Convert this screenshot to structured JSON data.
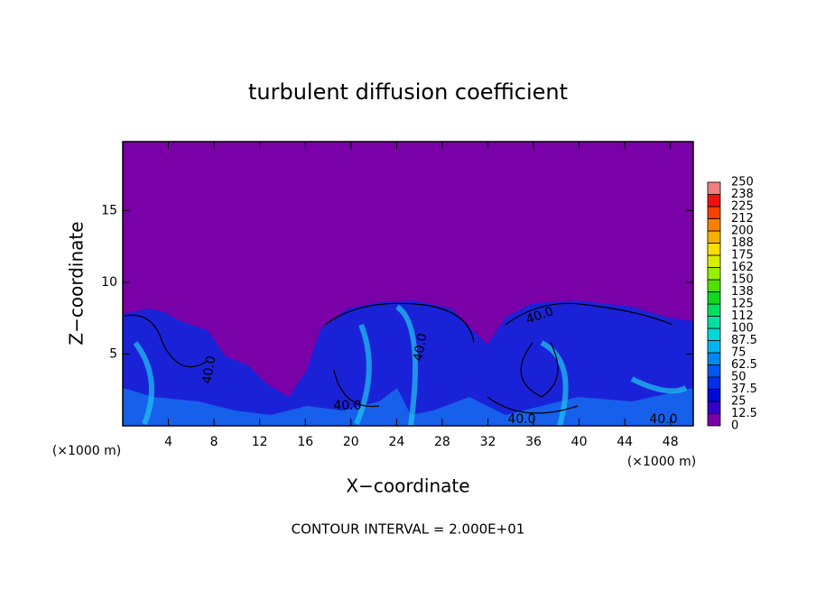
{
  "chart_data": {
    "type": "contour",
    "title": "turbulent diffusion coefficient",
    "x_label": "X−coordinate",
    "y_label": "Z−coordinate",
    "x_unit": "(×1000 m)",
    "footer": "CONTOUR INTERVAL = 2.000E+01",
    "xlim": [
      0,
      50
    ],
    "ylim": [
      0,
      19.8
    ],
    "xticks": [
      4,
      8,
      12,
      16,
      20,
      24,
      28,
      32,
      36,
      40,
      44,
      48
    ],
    "yticks": [
      5,
      10,
      15
    ],
    "contour_labels": [
      "40.0",
      "40.0",
      "40.0",
      "40.0",
      "40.0",
      "40.0"
    ],
    "colorbar": {
      "lim": [
        0,
        250
      ],
      "ticks": [
        0,
        12.5,
        25,
        37.5,
        50,
        62.5,
        75,
        87.5,
        100,
        {
          "value": 112.5,
          "label": "112"
        },
        125,
        {
          "value": 137.5,
          "label": "138"
        },
        150,
        {
          "value": 162.5,
          "label": "162"
        },
        175,
        {
          "value": 187.5,
          "label": "188"
        },
        200,
        {
          "value": 212.5,
          "label": "212"
        },
        225,
        {
          "value": 237.5,
          "label": "238"
        },
        250
      ],
      "colors": [
        "#7a00a8",
        "#3300c8",
        "#0008d8",
        "#0030e8",
        "#0058f0",
        "#0088f0",
        "#00b4f0",
        "#00d8d8",
        "#00e0a0",
        "#00e060",
        "#10d820",
        "#50e000",
        "#98f000",
        "#d8f000",
        "#f8e000",
        "#f8b000",
        "#f88000",
        "#f84000",
        "#f01010",
        "#f08080"
      ]
    }
  }
}
